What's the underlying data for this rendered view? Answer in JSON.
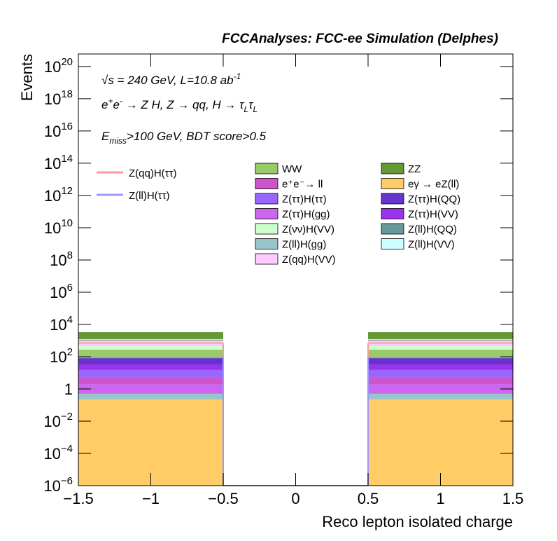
{
  "chart_data": {
    "type": "stacked-histogram",
    "title": "FCCAnalyses: FCC-ee Simulation (Delphes)",
    "x_label": "Reco lepton isolated charge",
    "y_label": "Events",
    "annotations": [
      [
        {
          "text": "√s = 240 GeV, L=10.8 ab"
        },
        {
          "text": "-1",
          "shift": "sup"
        }
      ],
      [
        {
          "text": "e"
        },
        {
          "text": "+",
          "shift": "sup"
        },
        {
          "text": "e"
        },
        {
          "text": "-",
          "shift": "sup"
        },
        {
          "text": " → Z H, Z  → qq, H  → τ"
        },
        {
          "text": "L",
          "shift": "sub"
        },
        {
          "text": "τ"
        },
        {
          "text": "L",
          "shift": "sub"
        }
      ],
      [
        {
          "text": "E"
        },
        {
          "text": "miss",
          "shift": "sub"
        },
        {
          "text": ">100 GeV, BDT score>0.5"
        }
      ]
    ],
    "y_log": true,
    "bins": [
      -1.5,
      -0.5,
      0.5,
      1.5
    ],
    "xlim": [
      -1.5,
      1.5
    ],
    "xticks": [
      {
        "value": -1.5,
        "label": "−1.5"
      },
      {
        "value": -1,
        "label": "−1"
      },
      {
        "value": -0.5,
        "label": "−0.5"
      },
      0,
      0.5,
      1,
      1.5
    ],
    "ylim": [
      1e-06,
      6e+20
    ],
    "yticks": [
      {
        "value": 1e-06,
        "label": "10",
        "sup": "−6"
      },
      {
        "value": 0.0001,
        "label": "10",
        "sup": "−4"
      },
      {
        "value": 0.01,
        "label": "10",
        "sup": "−2"
      },
      1,
      {
        "value": 100,
        "label": "10",
        "sup": "2"
      },
      {
        "value": 10000.0,
        "label": "10",
        "sup": "4"
      },
      {
        "value": 1000000.0,
        "label": "10",
        "sup": "6"
      },
      {
        "value": 100000000.0,
        "label": "10",
        "sup": "8"
      },
      {
        "value": 10000000000.0,
        "label": "10",
        "sup": "10"
      },
      {
        "value": 1000000000000.0,
        "label": "10",
        "sup": "12"
      },
      {
        "value": 100000000000000.0,
        "label": "10",
        "sup": "14"
      },
      {
        "value": 1e+16,
        "label": "10",
        "sup": "16"
      },
      {
        "value": 1e+18,
        "label": "10",
        "sup": "18"
      },
      {
        "value": 1e+20,
        "label": "10",
        "sup": "20"
      }
    ],
    "series": [
      {
        "name": "eγ → eZ(ll)",
        "color": "#ffcc66",
        "values": [
          0.22,
          0,
          0.22
        ]
      },
      {
        "name": "Z(ll)H(gg)",
        "color": "#99c5c9",
        "values": [
          0.28,
          0,
          0.28
        ]
      },
      {
        "name": "Z(ττ)H(gg)",
        "color": "#cc66ee",
        "values": [
          1.5,
          0,
          1.5
        ]
      },
      {
        "name": "e⁺e⁻→ ll",
        "color": "#cc55cc",
        "values": [
          3.5,
          0,
          3.5
        ]
      },
      {
        "name": "Z(ττ)H(ττ)",
        "color": "#9966ff",
        "values": [
          9.5,
          0,
          9.5
        ]
      },
      {
        "name": "Z(ττ)H(VV)",
        "color": "#9933ee",
        "values": [
          18,
          0,
          18
        ]
      },
      {
        "name": "Z(ττ)H(QQ)",
        "color": "#6633cc",
        "values": [
          48,
          0,
          48
        ]
      },
      {
        "name": "WW",
        "color": "#99cc66",
        "values": [
          190,
          0,
          190
        ]
      },
      {
        "name": "Z(νν)H(VV)",
        "color": "#ccffcc",
        "values": [
          180,
          0,
          180
        ]
      },
      {
        "name": "Z(qq)H(VV)",
        "color": "#ffccff",
        "values": [
          550,
          0,
          550
        ]
      },
      {
        "name": "Z(ll)H(QQ)",
        "color": "#669999",
        "values": [
          100,
          0,
          100
        ]
      },
      {
        "name": "Z(ll)H(VV)",
        "color": "#ccffff",
        "values": [
          100,
          0,
          100
        ]
      },
      {
        "name": "ZZ",
        "color": "#669933",
        "values": [
          2100,
          0,
          2100
        ]
      }
    ],
    "lines": [
      {
        "name": "Z(qq)H(ττ)",
        "color": "#ff9999",
        "values": [
          700,
          0,
          700
        ]
      },
      {
        "name": "Z(ll)H(ττ)",
        "color": "#9999ff",
        "values": [
          90,
          0,
          90
        ]
      }
    ]
  }
}
